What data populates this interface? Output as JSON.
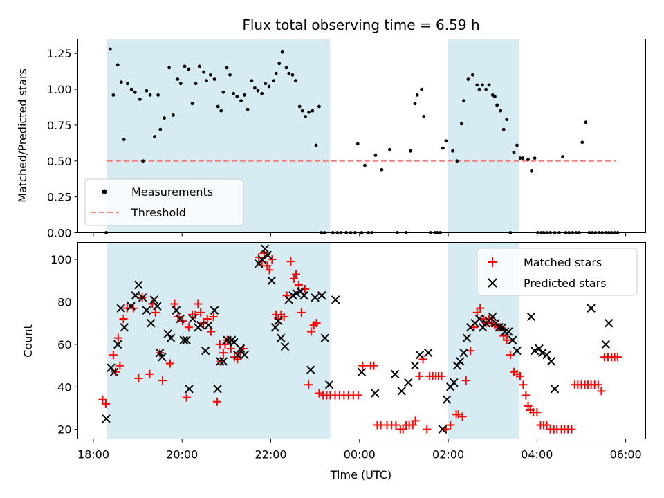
{
  "chart_data": [
    {
      "type": "scatter",
      "title": "Flux total observing time = 6.59 h",
      "xlabel": "",
      "ylabel": "Matched/Predicted stars",
      "xlim_hours": [
        17.65,
        30.45
      ],
      "ylim": [
        0,
        1.35
      ],
      "yticks": [
        0.0,
        0.25,
        0.5,
        0.75,
        1.0,
        1.25
      ],
      "ytick_labels": [
        "0.00",
        "0.25",
        "0.50",
        "0.75",
        "1.00",
        "1.25"
      ],
      "shaded_spans_hours": [
        [
          18.31,
          23.34
        ],
        [
          26.0,
          27.6
        ]
      ],
      "shade_color": "#add8e6",
      "threshold": 0.5,
      "threshold_range_hours": [
        18.31,
        29.78
      ],
      "threshold_color": "#f08080",
      "marker_color": "#000000",
      "legend": [
        "Measurements",
        "Threshold"
      ],
      "legend_position": "lower-left",
      "series": [
        {
          "name": "Measurements",
          "x": [
            18.29,
            18.38,
            18.45,
            18.55,
            18.63,
            18.69,
            18.77,
            18.86,
            18.94,
            19.05,
            19.12,
            19.2,
            19.28,
            19.38,
            19.46,
            19.51,
            19.6,
            19.71,
            19.8,
            19.9,
            19.97,
            20.06,
            20.15,
            20.23,
            20.31,
            20.39,
            20.49,
            20.55,
            20.64,
            20.73,
            20.81,
            20.88,
            20.93,
            21.01,
            21.08,
            21.16,
            21.24,
            21.33,
            21.41,
            21.48,
            21.57,
            21.64,
            21.71,
            21.8,
            21.88,
            21.96,
            22.06,
            22.12,
            22.19,
            22.26,
            22.35,
            22.41,
            22.49,
            22.56,
            22.65,
            22.71,
            22.78,
            22.86,
            22.94,
            23.02,
            23.09,
            23.14,
            23.21,
            23.4,
            23.5,
            23.58,
            23.7,
            23.8,
            23.9,
            23.96,
            24.05,
            24.12,
            24.2,
            24.28,
            24.36,
            24.5,
            24.68,
            24.85,
            25.05,
            25.15,
            25.25,
            25.3,
            25.4,
            25.45,
            25.6,
            25.7,
            25.75,
            25.82,
            25.88,
            25.95,
            26.1,
            26.2,
            26.3,
            26.35,
            26.45,
            26.55,
            26.65,
            26.7,
            26.77,
            26.85,
            26.92,
            27.0,
            27.05,
            27.1,
            27.18,
            27.25,
            27.32,
            27.4,
            27.48,
            27.55,
            27.62,
            27.68,
            27.8,
            27.88,
            27.95,
            28.02,
            28.1,
            28.15,
            28.22,
            28.3,
            28.4,
            28.5,
            28.58,
            28.65,
            28.72,
            28.8,
            28.88,
            28.95,
            29.02,
            29.1,
            29.18,
            29.25,
            29.32,
            29.4,
            29.47,
            29.55,
            29.62,
            29.68,
            29.75,
            29.82
          ],
          "y": [
            0.0,
            1.28,
            0.96,
            1.17,
            1.05,
            0.65,
            1.04,
            1.0,
            0.98,
            0.93,
            0.5,
            0.99,
            0.96,
            0.67,
            0.96,
            0.72,
            0.8,
            1.15,
            0.82,
            1.07,
            1.04,
            1.16,
            1.14,
            0.9,
            1.04,
            1.16,
            1.12,
            1.06,
            1.1,
            1.07,
            0.88,
            0.85,
            0.98,
            1.15,
            1.1,
            0.97,
            0.95,
            0.92,
            0.96,
            0.86,
            1.06,
            1.01,
            0.99,
            0.97,
            1.04,
            1.02,
            1.06,
            1.11,
            1.18,
            1.26,
            1.15,
            1.11,
            1.1,
            1.06,
            0.88,
            0.85,
            0.81,
            0.84,
            0.85,
            0.61,
            0.88,
            0.0,
            0.0,
            0.0,
            0.0,
            0.0,
            0.0,
            0.0,
            0.0,
            0.62,
            0.0,
            0.47,
            0.0,
            0.0,
            0.54,
            0.44,
            0.58,
            0.0,
            0.0,
            0.57,
            0.9,
            0.96,
            1.0,
            0.81,
            0.0,
            0.0,
            0.0,
            0.0,
            0.59,
            0.64,
            0.57,
            0.5,
            0.76,
            0.92,
            1.07,
            1.1,
            1.03,
            1.0,
            1.03,
            1.0,
            1.03,
            0.96,
            0.95,
            0.89,
            0.85,
            0.72,
            0.79,
            0.0,
            0.56,
            0.61,
            0.52,
            0.52,
            0.51,
            0.43,
            0.52,
            0.0,
            0.0,
            0.0,
            0.0,
            0.0,
            0.0,
            0.0,
            0.53,
            0.0,
            0.0,
            0.0,
            0.0,
            0.0,
            0.63,
            0.77,
            0.0,
            0.0,
            0.0,
            0.0,
            0.0,
            0.0,
            0.0,
            0.0,
            0.0,
            0.0
          ]
        }
      ]
    },
    {
      "type": "scatter",
      "title": "",
      "xlabel": "Time (UTC)",
      "ylabel": "Count",
      "xlim_hours": [
        17.65,
        30.45
      ],
      "ylim": [
        15.5,
        108
      ],
      "yticks": [
        20,
        40,
        60,
        80,
        100
      ],
      "ytick_labels": [
        "20",
        "40",
        "60",
        "80",
        "100"
      ],
      "xticks_hours": [
        18,
        20,
        22,
        24,
        26,
        28,
        30
      ],
      "xtick_labels": [
        "18:00",
        "20:00",
        "22:00",
        "00:00",
        "02:00",
        "04:00",
        "06:00"
      ],
      "shaded_spans_hours": [
        [
          18.31,
          23.34
        ],
        [
          26.0,
          27.6
        ]
      ],
      "shade_color": "#add8e6",
      "legend": [
        "Matched stars",
        "Predicted stars"
      ],
      "legend_position": "upper-right",
      "series": [
        {
          "name": "Matched stars",
          "marker": "+",
          "color": "#ff0000",
          "x": [
            18.21,
            18.28,
            18.45,
            18.5,
            18.56,
            18.6,
            18.68,
            18.76,
            18.9,
            19.02,
            19.1,
            19.27,
            19.33,
            19.4,
            19.5,
            19.56,
            19.73,
            19.83,
            19.91,
            20.01,
            20.1,
            20.15,
            20.23,
            20.3,
            20.36,
            20.42,
            20.48,
            20.57,
            20.65,
            20.71,
            20.79,
            20.85,
            20.88,
            20.93,
            20.97,
            21.02,
            21.1,
            21.18,
            21.25,
            21.31,
            21.38,
            21.73,
            21.8,
            21.85,
            21.92,
            21.97,
            22.03,
            22.12,
            22.17,
            22.23,
            22.3,
            22.36,
            22.45,
            22.52,
            22.57,
            22.63,
            22.69,
            22.77,
            22.85,
            22.91,
            22.97,
            23.03,
            23.09,
            23.18,
            23.26,
            23.34,
            23.45,
            23.55,
            23.65,
            23.75,
            23.86,
            23.97,
            24.07,
            24.25,
            24.32,
            24.4,
            24.48,
            24.62,
            24.72,
            24.82,
            24.92,
            24.98,
            25.05,
            25.12,
            25.2,
            25.26,
            25.35,
            25.43,
            25.52,
            25.58,
            25.65,
            25.72,
            25.78,
            25.85,
            25.95,
            26.05,
            26.18,
            26.23,
            26.32,
            26.4,
            26.5,
            26.58,
            26.65,
            26.72,
            26.8,
            26.85,
            26.92,
            26.98,
            27.05,
            27.12,
            27.18,
            27.25,
            27.32,
            27.4,
            27.48,
            27.55,
            27.62,
            27.69,
            27.75,
            27.8,
            27.85,
            27.92,
            28.0,
            28.08,
            28.15,
            28.22,
            28.3,
            28.38,
            28.45,
            28.55,
            28.62,
            28.7,
            28.78,
            28.85,
            28.92,
            29.0,
            29.08,
            29.15,
            29.22,
            29.3,
            29.38,
            29.45,
            29.52,
            29.6,
            29.68,
            29.75,
            29.82
          ],
          "y": [
            34,
            32,
            55,
            47,
            63,
            50,
            72,
            77,
            77,
            44,
            82,
            46,
            79,
            75,
            56,
            43,
            51,
            79,
            73,
            71,
            35,
            68,
            74,
            74,
            79,
            75,
            70,
            72,
            66,
            73,
            33,
            60,
            52,
            56,
            60,
            62,
            58,
            54,
            53,
            56,
            58,
            101,
            99,
            103,
            97,
            95,
            100,
            74,
            72,
            74,
            73,
            83,
            99,
            91,
            93,
            88,
            75,
            86,
            41,
            66,
            69,
            70,
            37,
            36,
            36,
            36,
            36,
            36,
            36,
            36,
            36,
            36,
            50,
            50,
            50,
            22,
            22,
            22,
            22,
            22,
            20,
            20,
            22,
            22,
            22,
            24,
            45,
            53,
            20,
            45,
            45,
            45,
            45,
            45,
            20,
            22,
            27,
            27,
            26,
            43,
            57,
            68,
            75,
            77,
            72,
            70,
            72,
            70,
            69,
            68,
            68,
            64,
            62,
            55,
            47,
            46,
            45,
            41,
            36,
            31,
            29,
            28,
            28,
            22,
            22,
            22,
            20,
            20,
            20,
            20,
            20,
            20,
            20,
            41,
            41,
            41,
            41,
            41,
            41,
            41,
            41,
            38,
            54,
            54,
            54,
            54,
            54
          ]
        },
        {
          "name": "Predicted stars",
          "marker": "x",
          "color": "#000000",
          "x": [
            18.29,
            18.4,
            18.47,
            18.55,
            18.62,
            18.7,
            18.85,
            18.95,
            19.02,
            19.11,
            19.2,
            19.3,
            19.37,
            19.44,
            19.5,
            19.55,
            19.68,
            19.75,
            19.87,
            19.96,
            20.04,
            20.1,
            20.16,
            20.24,
            20.36,
            20.42,
            20.53,
            20.6,
            20.73,
            20.8,
            20.86,
            20.93,
            21.02,
            21.12,
            21.17,
            21.25,
            21.32,
            21.41,
            21.73,
            21.8,
            21.87,
            21.93,
            22.02,
            22.1,
            22.17,
            22.23,
            22.32,
            22.41,
            22.5,
            22.58,
            22.67,
            22.75,
            22.9,
            23.0,
            23.15,
            23.22,
            23.32,
            23.46,
            24.05,
            24.35,
            24.8,
            24.95,
            25.1,
            25.25,
            25.36,
            25.55,
            25.87,
            25.97,
            26.05,
            26.13,
            26.2,
            26.27,
            26.35,
            26.42,
            26.5,
            26.6,
            26.7,
            26.78,
            26.85,
            26.92,
            27.0,
            27.07,
            27.15,
            27.22,
            27.28,
            27.36,
            27.45,
            27.55,
            27.87,
            27.95,
            28.05,
            28.12,
            28.22,
            28.32,
            28.4,
            29.22,
            29.55,
            29.62
          ],
          "y": [
            25,
            49,
            47,
            60,
            77,
            68,
            78,
            83,
            88,
            82,
            76,
            70,
            81,
            78,
            56,
            54,
            65,
            63,
            76,
            72,
            62,
            62,
            39,
            72,
            68,
            69,
            57,
            69,
            76,
            39,
            52,
            52,
            62,
            62,
            61,
            55,
            58,
            55,
            98,
            100,
            105,
            102,
            90,
            68,
            71,
            63,
            59,
            81,
            83,
            84,
            85,
            83,
            48,
            82,
            83,
            63,
            41,
            81,
            47,
            37,
            46,
            38,
            42,
            50,
            55,
            56,
            20,
            34,
            40,
            42,
            50,
            52,
            56,
            63,
            68,
            70,
            72,
            68,
            70,
            71,
            73,
            70,
            68,
            68,
            66,
            66,
            62,
            57,
            73,
            57,
            58,
            56,
            55,
            52,
            39,
            77,
            60,
            70
          ]
        }
      ]
    }
  ]
}
